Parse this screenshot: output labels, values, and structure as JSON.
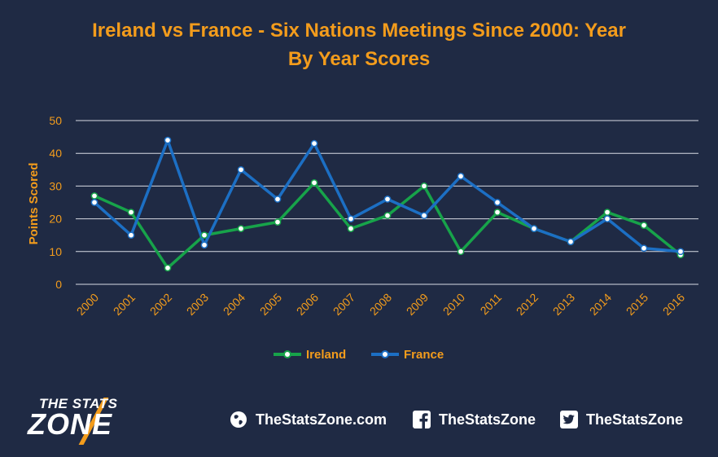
{
  "chart_data": {
    "type": "line",
    "title": "Ireland vs France - Six Nations Meetings Since 2000: Year By Year Scores",
    "title_lines": [
      "Ireland vs France - Six Nations Meetings Since 2000: Year",
      "By Year Scores"
    ],
    "ylabel": "Points Scored",
    "xlabel": "",
    "ylim": [
      0,
      50
    ],
    "yticks": [
      0,
      10,
      20,
      30,
      40,
      50
    ],
    "grid": true,
    "legend_position": "bottom",
    "categories": [
      "2000",
      "2001",
      "2002",
      "2003",
      "2004",
      "2005",
      "2006",
      "2007",
      "2008",
      "2009",
      "2010",
      "2011",
      "2012",
      "2013",
      "2014",
      "2015",
      "2016"
    ],
    "series": [
      {
        "name": "Ireland",
        "color": "#17a34a",
        "values": [
          27,
          22,
          5,
          15,
          17,
          19,
          31,
          17,
          21,
          30,
          10,
          22,
          17,
          13,
          22,
          18,
          9
        ]
      },
      {
        "name": "France",
        "color": "#1c6fc4",
        "values": [
          25,
          15,
          44,
          12,
          35,
          26,
          43,
          20,
          26,
          21,
          33,
          25,
          17,
          13,
          20,
          11,
          10
        ]
      }
    ]
  },
  "footer": {
    "logo_line1": "THE STATS",
    "logo_line2": "ZONE",
    "website": "TheStatsZone.com",
    "facebook": "TheStatsZone",
    "twitter": "TheStatsZone",
    "icons": [
      "globe-icon",
      "facebook-icon",
      "twitter-icon"
    ]
  }
}
